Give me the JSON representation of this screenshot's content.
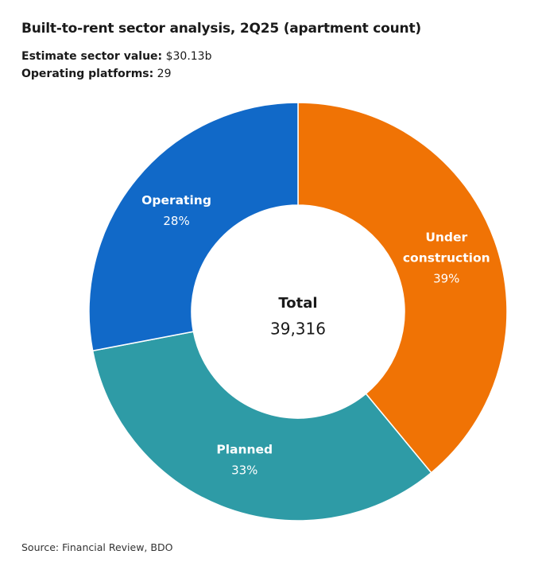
{
  "title": "Built-to-rent sector analysis, 2Q25 (apartment count)",
  "stats": [
    {
      "label": "Estimate sector value:",
      "value": "$30.13b"
    },
    {
      "label": "Operating platforms:",
      "value": "29"
    }
  ],
  "source": "Source: Financial Review, BDO",
  "chart_data": {
    "type": "pie",
    "donut": true,
    "center_label": "Total",
    "center_value": "39,316",
    "slices": [
      {
        "label_lines": [
          "Under",
          "construction"
        ],
        "value": 39,
        "display": "39%",
        "color": "#f07305"
      },
      {
        "label_lines": [
          "Planned"
        ],
        "value": 33,
        "display": "33%",
        "color": "#2e9ba6"
      },
      {
        "label_lines": [
          "Operating"
        ],
        "value": 28,
        "display": "28%",
        "color": "#1169c8"
      }
    ]
  }
}
